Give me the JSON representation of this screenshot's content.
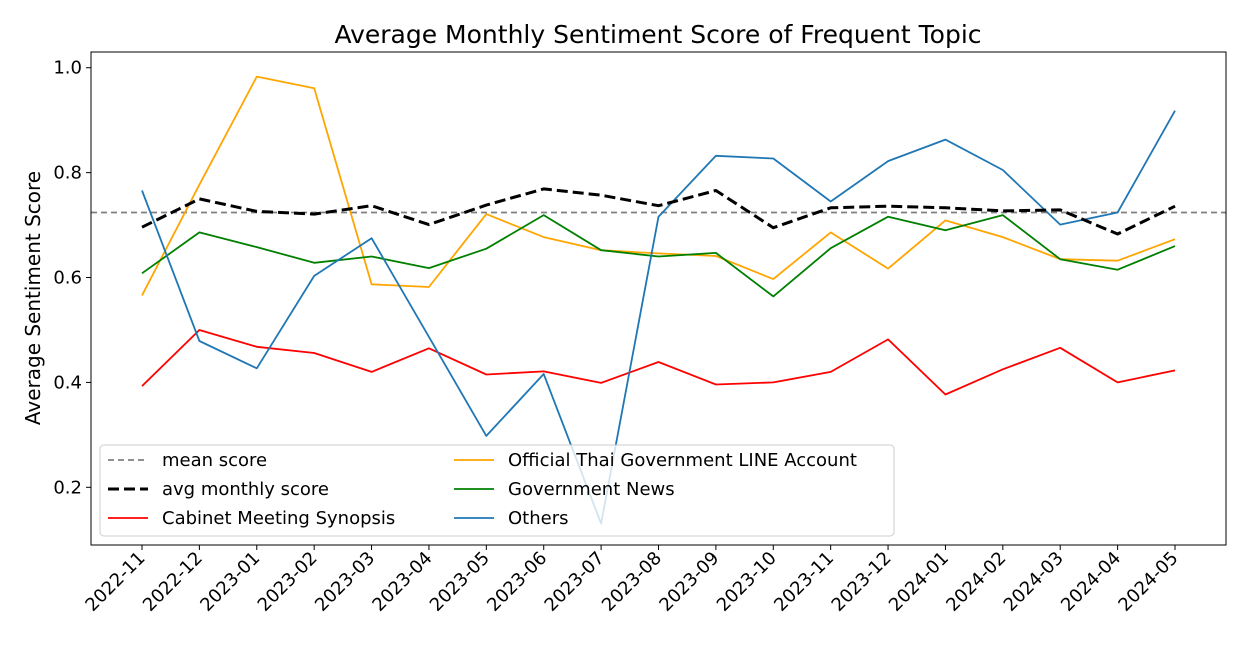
{
  "chart_data": {
    "type": "line",
    "title": "Average Monthly Sentiment Score of Frequent Topic",
    "xlabel": "",
    "ylabel": "Average Sentiment Score",
    "ylim": [
      0.09,
      1.03
    ],
    "yticks": [
      0.2,
      0.4,
      0.6,
      0.8,
      1.0
    ],
    "ytick_labels": [
      "0.2",
      "0.4",
      "0.6",
      "0.8",
      "1.0"
    ],
    "categories": [
      "2022-11",
      "2022-12",
      "2023-01",
      "2023-02",
      "2023-03",
      "2023-04",
      "2023-05",
      "2023-06",
      "2023-07",
      "2023-08",
      "2023-09",
      "2023-10",
      "2023-11",
      "2023-12",
      "2024-01",
      "2024-02",
      "2024-03",
      "2024-04",
      "2024-05"
    ],
    "mean_score": 0.724,
    "legend": {
      "placement": "lower-left",
      "entries": [
        "mean score",
        "Official Thai Government LINE Account",
        "avg monthly score",
        "Government News",
        "Cabinet Meeting Synopsis",
        "Others"
      ]
    },
    "series": [
      {
        "name": "avg monthly score",
        "color": "#000000",
        "style": "dashed-bold",
        "values": [
          0.696,
          0.75,
          0.726,
          0.721,
          0.737,
          0.701,
          0.738,
          0.769,
          0.757,
          0.737,
          0.766,
          0.695,
          0.733,
          0.736,
          0.733,
          0.727,
          0.729,
          0.683,
          0.736
        ]
      },
      {
        "name": "Cabinet Meeting Synopsis",
        "color": "#ff0000",
        "style": "solid",
        "values": [
          0.393,
          0.5,
          0.468,
          0.456,
          0.42,
          0.465,
          0.415,
          0.421,
          0.399,
          0.439,
          0.396,
          0.4,
          0.42,
          0.482,
          0.377,
          0.425,
          0.466,
          0.4,
          0.423
        ]
      },
      {
        "name": "Official Thai Government LINE Account",
        "color": "#ffa500",
        "style": "solid",
        "values": [
          0.566,
          0.777,
          0.983,
          0.961,
          0.587,
          0.582,
          0.721,
          0.677,
          0.652,
          0.646,
          0.641,
          0.597,
          0.686,
          0.617,
          0.709,
          0.677,
          0.635,
          0.632,
          0.673
        ]
      },
      {
        "name": "Government News",
        "color": "#008000",
        "style": "solid",
        "values": [
          0.608,
          0.686,
          0.658,
          0.628,
          0.64,
          0.618,
          0.655,
          0.719,
          0.652,
          0.64,
          0.647,
          0.564,
          0.656,
          0.716,
          0.69,
          0.719,
          0.635,
          0.615,
          0.66
        ]
      },
      {
        "name": "Others",
        "color": "#1f77b4",
        "style": "solid",
        "values": [
          0.766,
          0.479,
          0.427,
          0.603,
          0.675,
          0.487,
          0.298,
          0.416,
          0.131,
          0.716,
          0.832,
          0.827,
          0.745,
          0.822,
          0.863,
          0.805,
          0.701,
          0.724,
          0.918
        ]
      }
    ]
  }
}
